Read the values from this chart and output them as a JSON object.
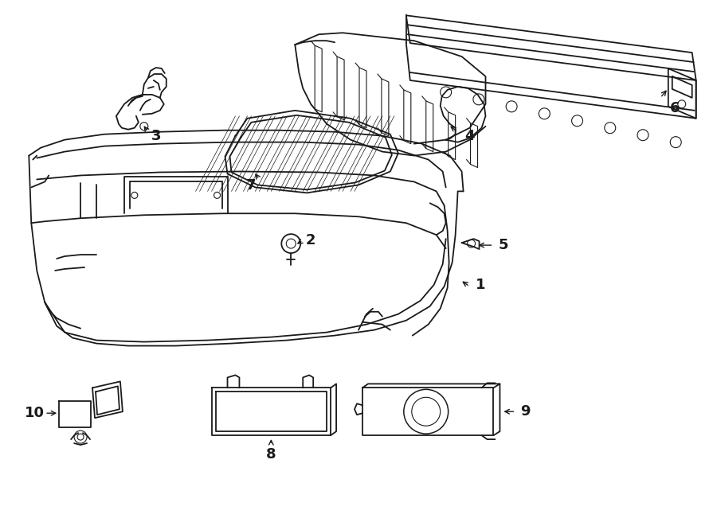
{
  "background_color": "#ffffff",
  "line_color": "#1a1a1a",
  "line_width": 1.3,
  "fig_width": 9.0,
  "fig_height": 6.61,
  "dpi": 100
}
